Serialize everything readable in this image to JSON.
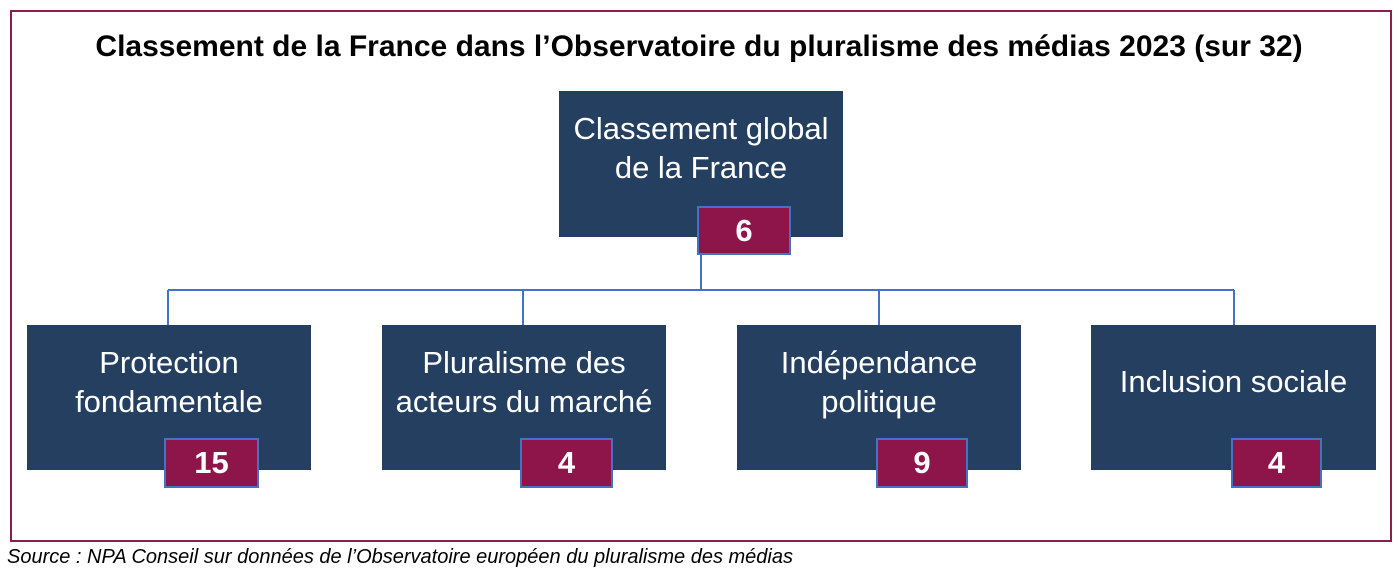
{
  "title": "Classement de la France dans l’Observatoire du pluralisme des médias 2023 (sur 32)",
  "root": {
    "label": "Classement global\nde la France",
    "rank": "6"
  },
  "children": [
    {
      "label": "Protection\nfondamentale",
      "rank": "15"
    },
    {
      "label": "Pluralisme des\nacteurs du marché",
      "rank": "4"
    },
    {
      "label": "Indépendance\npolitique",
      "rank": "9"
    },
    {
      "label": "Inclusion sociale",
      "rank": "4"
    }
  ],
  "source": "Source : NPA Conseil sur données de l’Observatoire européen du pluralisme des médias",
  "colors": {
    "box": "#243f60",
    "rank": "#8e154a",
    "rank_border": "#4472c4",
    "frame": "#8b1f4c",
    "connector": "#4472c4"
  }
}
